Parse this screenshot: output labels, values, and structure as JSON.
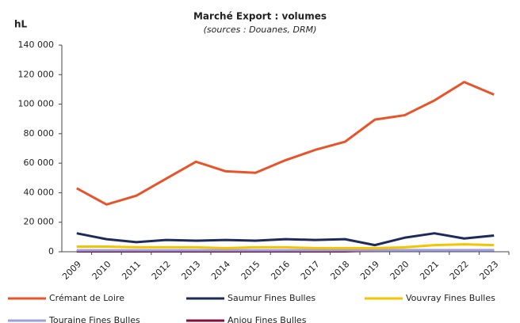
{
  "chart_data": {
    "type": "line",
    "title": "Marché Export : volumes",
    "subtitle": "(sources : Douanes, DRM)",
    "y_label": "hL",
    "categories": [
      "2009",
      "2010",
      "2011",
      "2012",
      "2013",
      "2014",
      "2015",
      "2016",
      "2017",
      "2018",
      "2019",
      "2020",
      "2021",
      "2022",
      "2023"
    ],
    "series": [
      {
        "name": "Crémant de Loire",
        "color": "#e8532a",
        "values": [
          43000,
          32000,
          38000,
          49500,
          61000,
          54500,
          53500,
          62000,
          69000,
          74500,
          89500,
          92500,
          102500,
          115000,
          106500
        ]
      },
      {
        "name": "Saumur Fines Bulles",
        "color": "#1f2a5c",
        "values": [
          12500,
          8500,
          6500,
          8000,
          7500,
          8000,
          7500,
          8500,
          8000,
          8500,
          4500,
          9500,
          12500,
          9000,
          11000
        ]
      },
      {
        "name": "Vouvray Fines Bulles",
        "color": "#f5c400",
        "values": [
          3500,
          3500,
          3000,
          3000,
          3000,
          2500,
          3000,
          3000,
          2500,
          2500,
          2500,
          3000,
          4500,
          5000,
          4500
        ]
      },
      {
        "name": "Touraine Fines Bulles",
        "color": "#9aa0e0",
        "values": [
          1000,
          1000,
          1000,
          1000,
          1000,
          1000,
          1000,
          1000,
          1000,
          1000,
          1000,
          1000,
          1000,
          1000,
          1000
        ]
      },
      {
        "name": "Anjou Fines Bulles",
        "color": "#8b0d3a",
        "values": [
          300,
          300,
          300,
          300,
          300,
          300,
          300,
          300,
          300,
          300,
          800,
          1000,
          1000,
          1000,
          1000
        ]
      }
    ],
    "ylim": [
      0,
      140000
    ],
    "yticks": [
      0,
      {
        "value": 20000,
        "label": "20 000"
      },
      {
        "value": 40000,
        "label": "40 000"
      },
      {
        "value": 60000,
        "label": "60 000"
      },
      {
        "value": 80000,
        "label": "80 000"
      },
      {
        "value": 100000,
        "label": "100 000"
      },
      {
        "value": 120000,
        "label": "120 000"
      },
      {
        "value": 140000,
        "label": "140 000"
      }
    ],
    "legend": "bottom"
  }
}
